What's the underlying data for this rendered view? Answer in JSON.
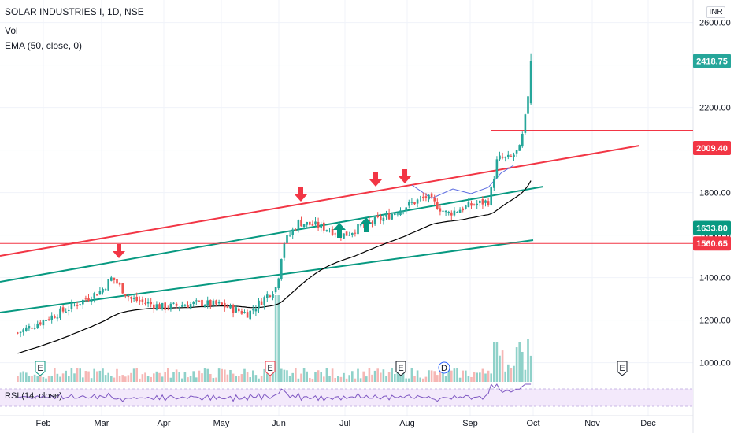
{
  "header": {
    "title": "SOLAR INDUSTRIES I, 1D, NSE",
    "vol_label": "Vol",
    "ema_label": "EMA (50, close, 0)",
    "rsi_label": "RSI (14, close)",
    "currency": "INR"
  },
  "colors": {
    "up": "#26a69a",
    "down": "#ef5350",
    "ema": "#000000",
    "red_line": "#f23645",
    "teal_line": "#089981",
    "rsi": "#7e57c2",
    "rsi_band": "#f3e9fb",
    "blue_pattern": "#5b6be0"
  },
  "chart_data": {
    "type": "candlestick",
    "instrument": "SOLAR INDUSTRIES I",
    "timeframe": "1D",
    "exchange": "NSE",
    "y_axis": {
      "ylim": [
        880,
        2620
      ],
      "ticks": [
        "1000.00",
        "1200.00",
        "1400.00",
        "1600.00",
        "1800.00",
        "2000.00",
        "2200.00",
        "2400.00",
        "2600.00"
      ]
    },
    "x_axis": {
      "ticks": [
        "Feb",
        "Mar",
        "Apr",
        "May",
        "Jun",
        "Jul",
        "Aug",
        "Sep",
        "Oct",
        "Nov",
        "Dec"
      ]
    },
    "price_tags": [
      {
        "value": 2418.75,
        "label": "2418.75",
        "color": "#26a69a"
      },
      {
        "value": 2009.4,
        "label": "2009.40",
        "color": "#f23645"
      },
      {
        "value": 1633.8,
        "label": "1633.80",
        "color": "#089981"
      },
      {
        "value": 1560.65,
        "label": "1560.65",
        "color": "#f23645"
      }
    ],
    "price_anchor_points": [
      {
        "date": "Jan 18",
        "close": 1140
      },
      {
        "date": "Feb 15",
        "close": 1260
      },
      {
        "date": "Mar 1",
        "close": 1340
      },
      {
        "date": "Mar 6",
        "close": 1400
      },
      {
        "date": "Mar 15",
        "close": 1300
      },
      {
        "date": "Apr 1",
        "close": 1260
      },
      {
        "date": "Apr 20",
        "close": 1280
      },
      {
        "date": "May 1",
        "close": 1270
      },
      {
        "date": "May 15",
        "close": 1230
      },
      {
        "date": "May 30",
        "close": 1360
      },
      {
        "date": "Jun 3",
        "close": 1560
      },
      {
        "date": "Jun 10",
        "close": 1660
      },
      {
        "date": "Jun 20",
        "close": 1640
      },
      {
        "date": "Jul 1",
        "close": 1600
      },
      {
        "date": "Jul 10",
        "close": 1650
      },
      {
        "date": "Jul 20",
        "close": 1680
      },
      {
        "date": "Aug 1",
        "close": 1740
      },
      {
        "date": "Aug 10",
        "close": 1780
      },
      {
        "date": "Aug 20",
        "close": 1700
      },
      {
        "date": "Sep 1",
        "close": 1740
      },
      {
        "date": "Sep 10",
        "close": 1760
      },
      {
        "date": "Sep 14",
        "close": 1960
      },
      {
        "date": "Sep 20",
        "close": 1960
      },
      {
        "date": "Sep 25",
        "close": 2010
      },
      {
        "date": "Sep 28",
        "close": 2200
      },
      {
        "date": "Sep 30",
        "close": 2418.75
      }
    ],
    "event_markers": [
      {
        "letter": "E",
        "month": "Feb",
        "color": "#089981"
      },
      {
        "letter": "E",
        "month": "Jun",
        "color": "#f23645"
      },
      {
        "letter": "E",
        "month": "Aug",
        "color": "#131722"
      },
      {
        "letter": "D",
        "month": "Aug",
        "color": "#2962ff"
      },
      {
        "letter": "E",
        "month": "Nov",
        "color": "#131722"
      }
    ],
    "annotations": {
      "down_arrows": 4,
      "up_arrows": 2
    },
    "indicators": [
      "Vol",
      "EMA (50, close, 0)",
      "RSI (14, close)"
    ]
  }
}
